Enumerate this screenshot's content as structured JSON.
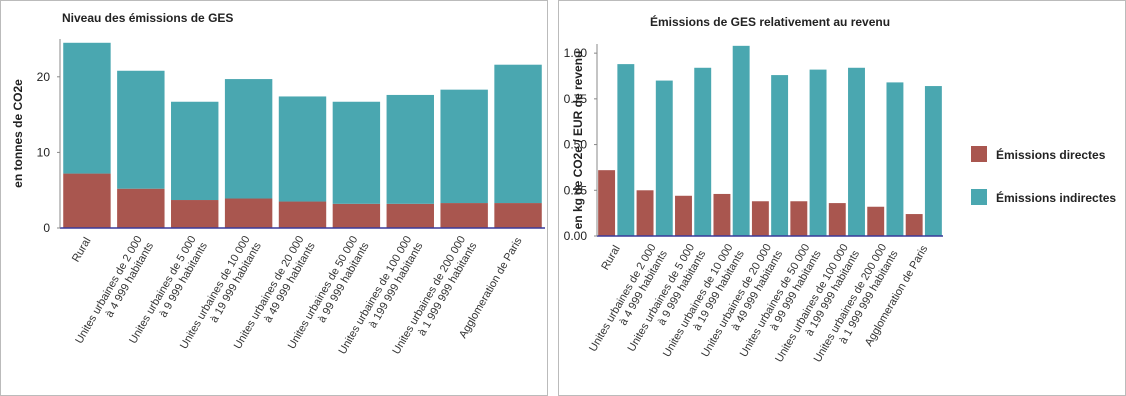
{
  "chart_data": [
    {
      "type": "bar",
      "stacked": true,
      "title": "Niveau des émissions de GES",
      "y_label": "en tonnes de CO2e",
      "categories": [
        [
          "Rural"
        ],
        [
          "Unites urbaines de 2 000",
          "à 4 999 habitants"
        ],
        [
          "Unites urbaines de 5 000",
          "à 9 999 habitants"
        ],
        [
          "Unites urbaines de 10 000",
          "à 19 999 habitants"
        ],
        [
          "Unites urbaines de 20 000",
          "à 49 999 habitants"
        ],
        [
          "Unites urbaines de 50 000",
          "à 99 999 habitants"
        ],
        [
          "Unites urbaines de 100 000",
          "à 199 999 habitants"
        ],
        [
          "Unites urbaines de 200 000",
          "à 1 999 999 habitants"
        ],
        [
          "Agglomeration de Paris"
        ]
      ],
      "series": [
        {
          "name": "Émissions directes",
          "color": "#a9564f",
          "values": [
            7.2,
            5.2,
            3.7,
            3.9,
            3.5,
            3.2,
            3.2,
            3.3,
            3.3
          ]
        },
        {
          "name": "Émissions indirectes",
          "color": "#4aa7b0",
          "values": [
            17.3,
            15.6,
            13.0,
            15.8,
            13.9,
            13.5,
            14.4,
            15.0,
            18.3
          ]
        }
      ],
      "ylim": [
        0,
        25
      ],
      "yticks": [
        0,
        10,
        20
      ]
    },
    {
      "type": "bar",
      "stacked": false,
      "title": "Émissions de GES relativement au revenu",
      "y_label": "en kg de CO2e / EUR de revenu",
      "categories": [
        [
          "Rural"
        ],
        [
          "Unites urbaines de 2 000",
          "à 4 999 habitants"
        ],
        [
          "Unites urbaines de 5 000",
          "à 9 999 habitants"
        ],
        [
          "Unites urbaines de 10 000",
          "à 19 999 habitants"
        ],
        [
          "Unites urbaines de 20 000",
          "à 49 999 habitants"
        ],
        [
          "Unites urbaines de 50 000",
          "à 99 999 habitants"
        ],
        [
          "Unites urbaines de 100 000",
          "à 199 999 habitants"
        ],
        [
          "Unites urbaines de 200 000",
          "à 1 999 999 habitants"
        ],
        [
          "Agglomeration de Paris"
        ]
      ],
      "series": [
        {
          "name": "Émissions directes",
          "color": "#a9564f",
          "values": [
            0.36,
            0.25,
            0.22,
            0.23,
            0.19,
            0.19,
            0.18,
            0.16,
            0.12
          ]
        },
        {
          "name": "Émissions indirectes",
          "color": "#4aa7b0",
          "values": [
            0.94,
            0.85,
            0.92,
            1.04,
            0.88,
            0.91,
            0.92,
            0.84,
            0.82
          ]
        }
      ],
      "ylim": [
        0,
        1.05
      ],
      "yticks": [
        {
          "value": 0,
          "label": "0.00"
        },
        0.25,
        {
          "value": 0.5,
          "label": "0.50"
        },
        0.75,
        {
          "value": 1,
          "label": "1.00"
        }
      ],
      "legend": "right"
    }
  ]
}
